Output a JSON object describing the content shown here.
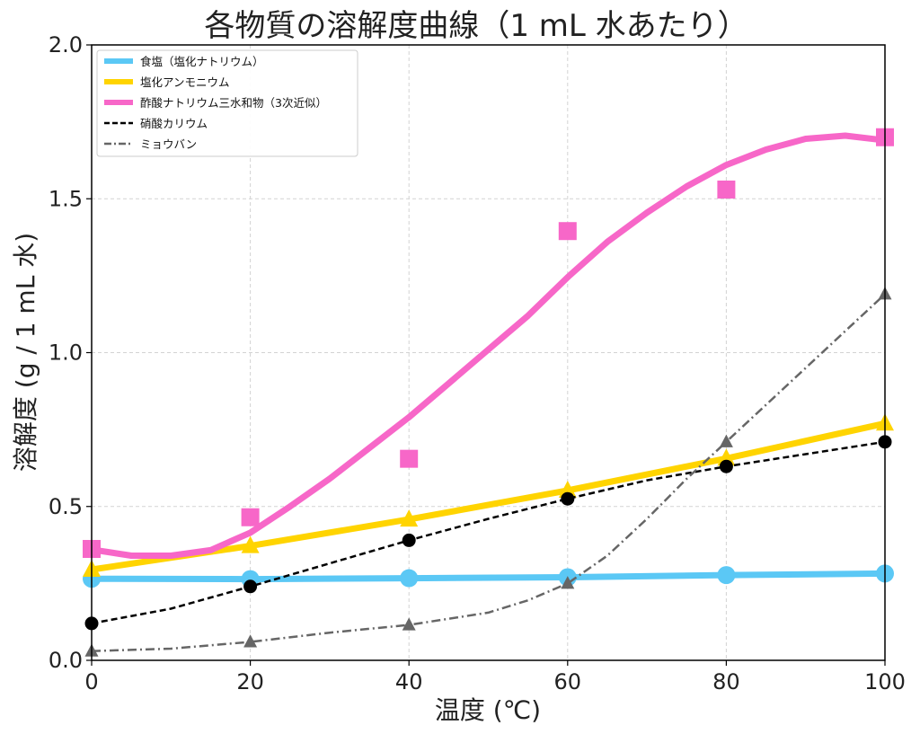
{
  "chart_data": {
    "type": "line",
    "title": "各物質の溶解度曲線（1 mL 水あたり）",
    "xlabel": "温度 (℃)",
    "ylabel": "溶解度 (g / 1 mL 水)",
    "xlim": [
      0,
      100
    ],
    "ylim": [
      0.0,
      2.0
    ],
    "xticks": [
      "0",
      "20",
      "40",
      "60",
      "80",
      "100"
    ],
    "yticks": [
      "0.0",
      "0.5",
      "1.0",
      "1.5",
      "2.0"
    ],
    "grid": true,
    "legend_position": "top-left",
    "series": [
      {
        "name": "食塩（塩化ナトリウム）",
        "color": "#5bc8f5",
        "line_style": "solid-thick",
        "marker": "circle",
        "points": [
          [
            0,
            0.265
          ],
          [
            20,
            0.264
          ],
          [
            40,
            0.267
          ],
          [
            60,
            0.27
          ],
          [
            80,
            0.277
          ],
          [
            100,
            0.282
          ]
        ],
        "curve": [
          [
            0,
            0.265
          ],
          [
            20,
            0.264
          ],
          [
            40,
            0.267
          ],
          [
            60,
            0.27
          ],
          [
            80,
            0.277
          ],
          [
            100,
            0.282
          ]
        ]
      },
      {
        "name": "塩化アンモニウム",
        "color": "#ffd400",
        "line_style": "solid-thick",
        "marker": "triangle",
        "points": [
          [
            0,
            0.295
          ],
          [
            20,
            0.372
          ],
          [
            40,
            0.458
          ],
          [
            60,
            0.552
          ],
          [
            80,
            0.656
          ],
          [
            100,
            0.77
          ]
        ],
        "curve": [
          [
            0,
            0.295
          ],
          [
            20,
            0.372
          ],
          [
            40,
            0.458
          ],
          [
            60,
            0.552
          ],
          [
            80,
            0.656
          ],
          [
            100,
            0.77
          ]
        ]
      },
      {
        "name": "酢酸ナトリウム三水和物（3次近似）",
        "color": "#f767c8",
        "line_style": "solid-thick",
        "marker": "square",
        "points": [
          [
            0,
            0.362
          ],
          [
            20,
            0.465
          ],
          [
            40,
            0.655
          ],
          [
            60,
            1.395
          ],
          [
            80,
            1.53
          ],
          [
            100,
            1.7
          ]
        ],
        "curve": [
          [
            0,
            0.36
          ],
          [
            5,
            0.34
          ],
          [
            10,
            0.34
          ],
          [
            15,
            0.358
          ],
          [
            20,
            0.415
          ],
          [
            25,
            0.5
          ],
          [
            30,
            0.59
          ],
          [
            35,
            0.69
          ],
          [
            40,
            0.79
          ],
          [
            45,
            0.9
          ],
          [
            50,
            1.01
          ],
          [
            55,
            1.12
          ],
          [
            60,
            1.245
          ],
          [
            65,
            1.36
          ],
          [
            70,
            1.455
          ],
          [
            75,
            1.54
          ],
          [
            80,
            1.61
          ],
          [
            85,
            1.66
          ],
          [
            90,
            1.695
          ],
          [
            95,
            1.705
          ],
          [
            100,
            1.69
          ]
        ]
      },
      {
        "name": "硝酸カリウム",
        "color": "#000000",
        "line_style": "dashed",
        "marker": "circle",
        "points": [
          [
            0,
            0.12
          ],
          [
            20,
            0.24
          ],
          [
            40,
            0.39
          ],
          [
            60,
            0.525
          ],
          [
            80,
            0.63
          ],
          [
            100,
            0.71
          ]
        ],
        "curve": [
          [
            0,
            0.12
          ],
          [
            10,
            0.168
          ],
          [
            20,
            0.24
          ],
          [
            30,
            0.315
          ],
          [
            40,
            0.39
          ],
          [
            50,
            0.46
          ],
          [
            60,
            0.525
          ],
          [
            70,
            0.585
          ],
          [
            80,
            0.63
          ],
          [
            90,
            0.67
          ],
          [
            100,
            0.71
          ]
        ]
      },
      {
        "name": "ミョウバン",
        "color": "#666666",
        "line_style": "dashdot",
        "marker": "triangle",
        "points": [
          [
            0,
            0.03
          ],
          [
            20,
            0.06
          ],
          [
            40,
            0.115
          ],
          [
            60,
            0.25
          ],
          [
            80,
            0.71
          ],
          [
            100,
            1.19
          ]
        ],
        "curve": [
          [
            0,
            0.03
          ],
          [
            10,
            0.038
          ],
          [
            20,
            0.06
          ],
          [
            30,
            0.09
          ],
          [
            40,
            0.115
          ],
          [
            50,
            0.155
          ],
          [
            55,
            0.195
          ],
          [
            60,
            0.25
          ],
          [
            65,
            0.34
          ],
          [
            70,
            0.46
          ],
          [
            75,
            0.59
          ],
          [
            80,
            0.71
          ],
          [
            85,
            0.83
          ],
          [
            90,
            0.95
          ],
          [
            95,
            1.07
          ],
          [
            100,
            1.19
          ]
        ]
      }
    ]
  }
}
